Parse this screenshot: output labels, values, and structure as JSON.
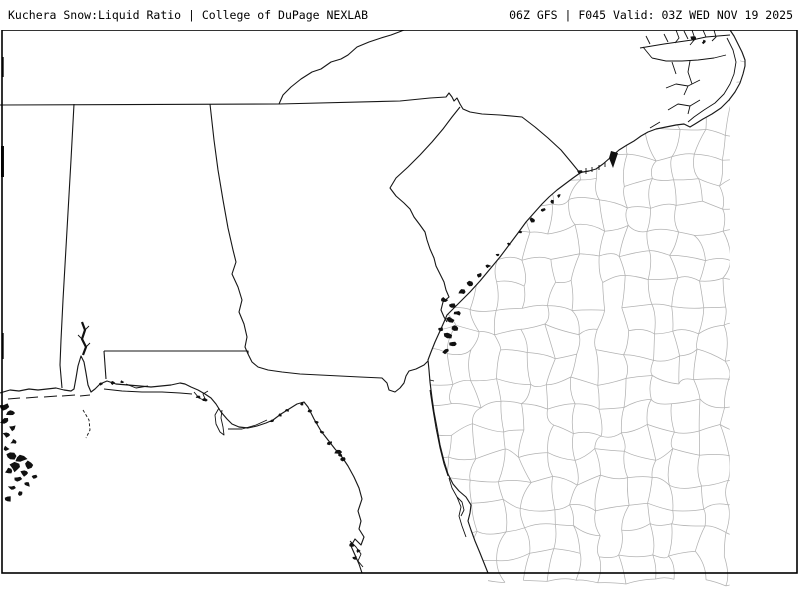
{
  "header": {
    "left_title": "Kuchera Snow:Liquid Ratio | College of DuPage NEXLAB",
    "right_status": "06Z GFS | F045 Valid: 03Z WED NOV 19 2025"
  },
  "map": {
    "colors": {
      "background": "#ffffff",
      "water": "#ffffff",
      "county_line": "#b2b2b2",
      "state_line": "#161616",
      "coast_line": "#191919",
      "detail_line": "#111111",
      "frame": "#000000",
      "text": "#000000"
    }
  }
}
